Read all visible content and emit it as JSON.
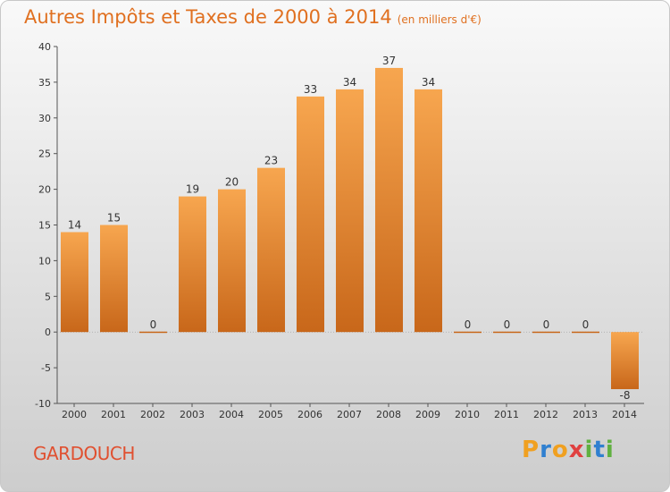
{
  "title": "Autres Impôts et Taxes de 2000 à 2014",
  "subtitle": "(en milliers d'€)",
  "commune": "GARDOUCH",
  "logo": {
    "letters": [
      "P",
      "r",
      "o",
      "x",
      "i",
      "t",
      "i"
    ],
    "colors": [
      "#f0a020",
      "#3080d0",
      "#f0a020",
      "#e04040",
      "#60b040",
      "#3080d0",
      "#60b040"
    ]
  },
  "colors": {
    "bar_top": "#f7a64f",
    "bar_bottom": "#c8671a",
    "title": "#e07020",
    "commune": "#e05030"
  },
  "chart_data": {
    "type": "bar",
    "categories": [
      "2000",
      "2001",
      "2002",
      "2003",
      "2004",
      "2005",
      "2006",
      "2007",
      "2008",
      "2009",
      "2010",
      "2011",
      "2012",
      "2013",
      "2014"
    ],
    "values": [
      14,
      15,
      0,
      19,
      20,
      23,
      33,
      34,
      37,
      34,
      0,
      0,
      0,
      0,
      -8
    ],
    "value_labels": [
      "14",
      "15",
      "0",
      "19",
      "20",
      "23",
      "33",
      "34",
      "37",
      "34",
      "0",
      "0",
      "0",
      "0",
      "-8"
    ],
    "yticks": [
      "-10",
      "-5",
      "0",
      "5",
      "10",
      "15",
      "20",
      "25",
      "30",
      "35",
      "40"
    ],
    "ylim": [
      -10,
      40
    ],
    "grid": false
  }
}
